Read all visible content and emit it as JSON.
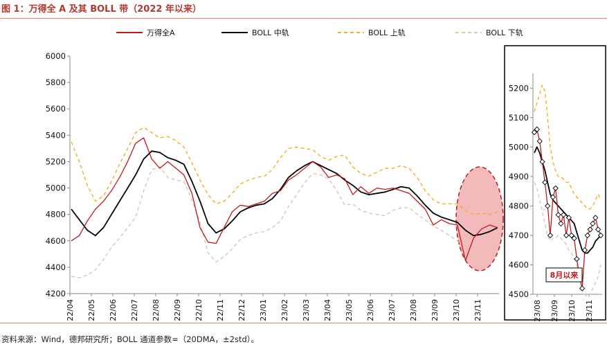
{
  "title": "图 1：万得全 A 及其 BOLL 带（2022 年以来）",
  "source": "资料来源：Wind，德邦研究所；BOLL 通道参数=（20DMA，±2std）。",
  "colors": {
    "price": "#c0191c",
    "mid": "#000000",
    "upper": "#f2b01e",
    "lower": "#d9c7a8",
    "highlight_fill": "#eea3a3",
    "highlight_stroke": "#c0191c",
    "title": "#b03a2e",
    "marker_fill": "#ffffff"
  },
  "chart_data": [
    {
      "type": "line",
      "legend": [
        "万得全A",
        "BOLL 中轨",
        "BOLL 上轨",
        "BOLL 下轨"
      ],
      "legend_position": "top",
      "x_ticks": [
        "22/04",
        "22/05",
        "22/06",
        "22/07",
        "22/08",
        "22/09",
        "22/10",
        "22/11",
        "22/12",
        "23/01",
        "23/02",
        "23/03",
        "23/04",
        "23/05",
        "23/06",
        "23/07",
        "23/08",
        "23/09",
        "23/10",
        "23/11"
      ],
      "ylim": [
        4200,
        6000
      ],
      "y_ticks": [
        4200,
        4400,
        4600,
        4800,
        5000,
        5200,
        5400,
        5600,
        5800,
        6000
      ],
      "annotation": "highlighted region around 23/10",
      "series": [
        {
          "name": "万得全A",
          "values": [
            4600,
            4640,
            4750,
            4840,
            4900,
            4980,
            5080,
            5200,
            5340,
            5380,
            5220,
            5150,
            5200,
            5150,
            5100,
            4960,
            4700,
            4590,
            4580,
            4700,
            4820,
            4870,
            4860,
            4880,
            4900,
            4960,
            4980,
            5060,
            5100,
            5150,
            5200,
            5160,
            5080,
            5100,
            5070,
            4950,
            5010,
            4960,
            5000,
            4990,
            5000,
            4980,
            4960,
            4900,
            4840,
            4720,
            4760,
            4730,
            4720,
            4450,
            4620,
            4690,
            4720,
            4700
          ]
        },
        {
          "name": "BOLL 中轨",
          "values": [
            4840,
            4760,
            4680,
            4640,
            4700,
            4800,
            4900,
            5000,
            5100,
            5220,
            5280,
            5270,
            5230,
            5210,
            5180,
            5050,
            4900,
            4730,
            4660,
            4690,
            4750,
            4820,
            4850,
            4870,
            4880,
            4920,
            4990,
            5080,
            5130,
            5170,
            5200,
            5170,
            5140,
            5110,
            5060,
            5020,
            4970,
            4950,
            4960,
            4970,
            4990,
            5010,
            5000,
            4940,
            4870,
            4810,
            4780,
            4760,
            4740,
            4680,
            4640,
            4650,
            4670,
            4700
          ]
        },
        {
          "name": "BOLL 上轨",
          "values": [
            5350,
            5200,
            5020,
            4900,
            4940,
            5050,
            5180,
            5300,
            5420,
            5460,
            5420,
            5380,
            5390,
            5360,
            5310,
            5190,
            5060,
            4950,
            4880,
            4900,
            4960,
            5030,
            5060,
            5080,
            5090,
            5140,
            5230,
            5300,
            5310,
            5300,
            5290,
            5240,
            5210,
            5240,
            5250,
            5160,
            5110,
            5090,
            5120,
            5150,
            5150,
            5170,
            5150,
            5080,
            4980,
            4910,
            4880,
            4880,
            4880,
            4830,
            4800,
            4810,
            4800,
            4820
          ]
        },
        {
          "name": "BOLL 下轨",
          "values": [
            4330,
            4320,
            4340,
            4380,
            4460,
            4550,
            4620,
            4700,
            4780,
            4980,
            5140,
            5160,
            5080,
            5060,
            5050,
            4910,
            4740,
            4510,
            4440,
            4480,
            4540,
            4610,
            4640,
            4660,
            4670,
            4700,
            4750,
            4860,
            4950,
            5040,
            5110,
            5100,
            5070,
            4980,
            4870,
            4880,
            4830,
            4810,
            4800,
            4790,
            4830,
            4850,
            4850,
            4800,
            4760,
            4710,
            4680,
            4640,
            4600,
            4530,
            4480,
            4490,
            4540,
            4580
          ]
        }
      ]
    },
    {
      "type": "line",
      "x_ticks": [
        "23/08",
        "23/09",
        "23/10",
        "23/11"
      ],
      "ylim": [
        4500,
        5250
      ],
      "y_ticks": [
        4500,
        4600,
        4700,
        4800,
        4900,
        5000,
        5100,
        5200
      ],
      "annotation": "8月以来",
      "series": [
        {
          "name": "万得全A",
          "values": [
            5050,
            5060,
            5020,
            4950,
            4880,
            4800,
            4700,
            4830,
            4860,
            4770,
            4740,
            4770,
            4700,
            4760,
            4700,
            4690,
            4620,
            4560,
            4520,
            4650,
            4700,
            4720,
            4740,
            4760,
            4720,
            4700
          ]
        },
        {
          "name": "BOLL 中轨",
          "values": [
            4980,
            5000,
            4980,
            4950,
            4920,
            4880,
            4840,
            4820,
            4810,
            4800,
            4790,
            4780,
            4770,
            4760,
            4750,
            4740,
            4710,
            4680,
            4650,
            4640,
            4640,
            4650,
            4660,
            4680,
            4690,
            4700
          ]
        },
        {
          "name": "BOLL 上轨",
          "values": [
            5120,
            5150,
            5180,
            5210,
            5190,
            5100,
            5000,
            4950,
            4920,
            4900,
            4900,
            4890,
            4880,
            4880,
            4860,
            4840,
            4830,
            4820,
            4810,
            4800,
            4790,
            4790,
            4800,
            4820,
            4840,
            4820
          ]
        },
        {
          "name": "BOLL 下轨",
          "values": [
            4880,
            4860,
            4820,
            4780,
            4740,
            4700,
            4680,
            4690,
            4690,
            4700,
            4690,
            4680,
            4670,
            4650,
            4640,
            4620,
            4600,
            4560,
            4520,
            4500,
            4490,
            4500,
            4520,
            4540,
            4560,
            4600
          ]
        }
      ]
    }
  ]
}
